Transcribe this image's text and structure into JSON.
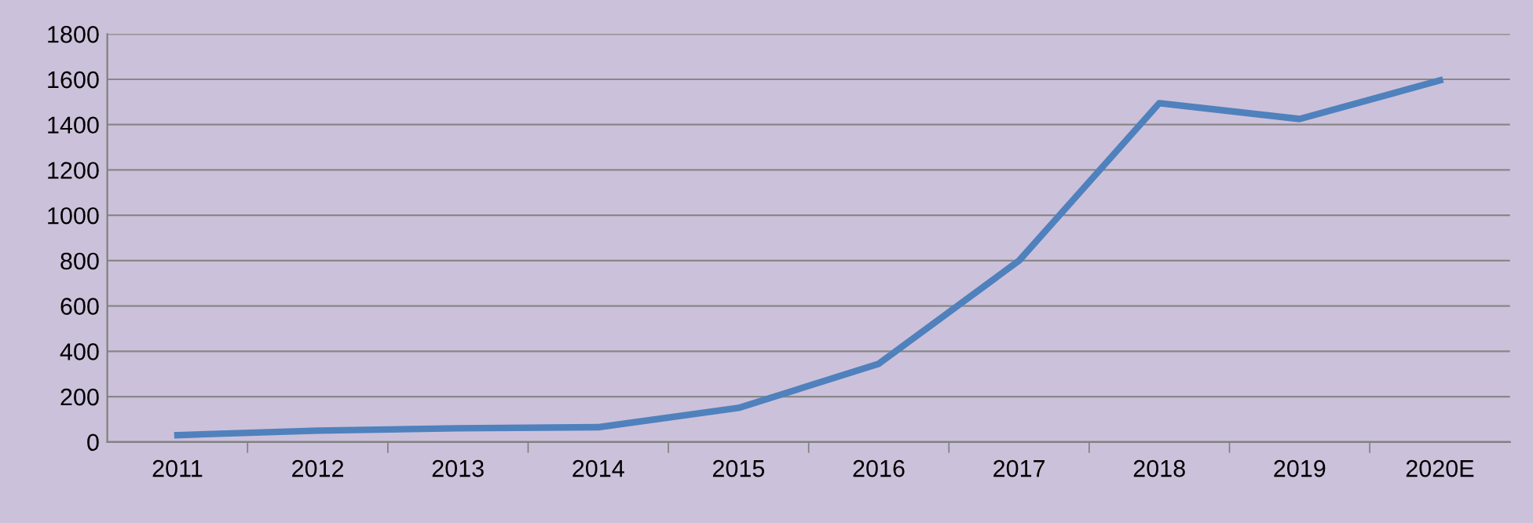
{
  "chart_data": {
    "type": "line",
    "categories": [
      "2011",
      "2012",
      "2013",
      "2014",
      "2015",
      "2016",
      "2017",
      "2018",
      "2019",
      "2020E"
    ],
    "series": [
      {
        "color": "#4f81bd",
        "values": [
          30,
          50,
          60,
          65,
          150,
          345,
          800,
          1495,
          1425,
          1595
        ]
      }
    ],
    "ylim": [
      0,
      1800
    ],
    "yticks": [
      0,
      200,
      400,
      600,
      800,
      1000,
      1200,
      1400,
      1600,
      1800
    ],
    "grid": "y",
    "marker": "none",
    "line_style": "solid",
    "legend": false
  }
}
